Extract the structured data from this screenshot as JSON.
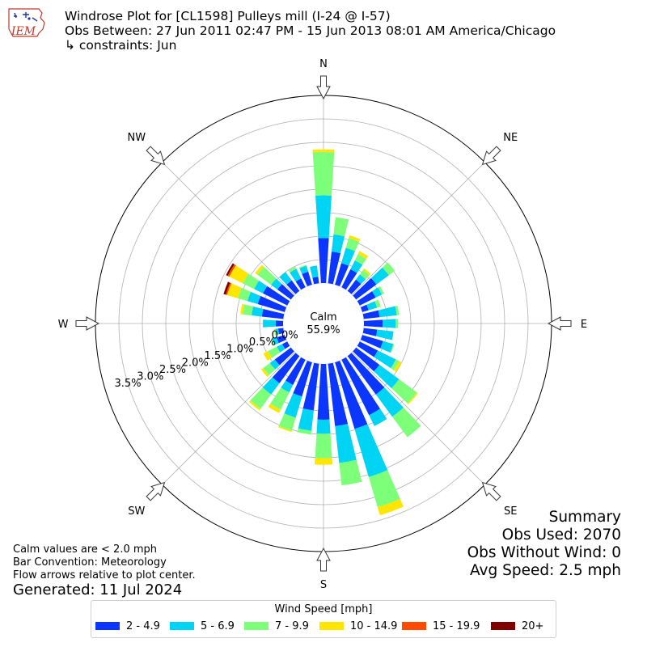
{
  "header": {
    "logo_text": "IEM",
    "title": "Windrose Plot for [CL1598] Pulleys mill  (I-24 @ I-57)",
    "period": "Obs Between: 27 Jun 2011 02:47 PM - 15 Jun 2013 08:01 AM America/Chicago",
    "constraints": " ↳ constraints: Jun"
  },
  "notes": {
    "calm_def": "Calm values are < 2.0 mph",
    "convention": "Bar Convention: Meteorology",
    "arrows": "Flow arrows relative to plot center.",
    "generated": "Generated: 11 Jul 2024"
  },
  "summary": {
    "title": "Summary",
    "obs_used": "Obs Used: 2070",
    "obs_without_wind": "Obs Without Wind: 0",
    "avg_speed": "Avg Speed: 2.5 mph"
  },
  "legend": {
    "title": "Wind Speed [mph]",
    "items": [
      {
        "label": "2 - 4.9",
        "color": "#0a36ff"
      },
      {
        "label": "5 - 6.9",
        "color": "#00d4f4"
      },
      {
        "label": "7 - 9.9",
        "color": "#7dff7a"
      },
      {
        "label": "10 - 14.9",
        "color": "#ffe600"
      },
      {
        "label": "15 - 19.9",
        "color": "#ff4a00"
      },
      {
        "label": "20+",
        "color": "#800000"
      }
    ]
  },
  "chart_data": {
    "type": "windrose",
    "calm_label": "Calm",
    "calm_value": "55.9%",
    "direction_labels": [
      "N",
      "NE",
      "E",
      "SE",
      "S",
      "SW",
      "W",
      "NW"
    ],
    "radial_ticks": [
      {
        "value": 0.0,
        "label": "0.0%"
      },
      {
        "value": 0.5,
        "label": "0.5%"
      },
      {
        "value": 1.0,
        "label": "1.0%"
      },
      {
        "value": 1.5,
        "label": "1.5%"
      },
      {
        "value": 2.0,
        "label": "2.0%"
      },
      {
        "value": 2.5,
        "label": "2.5%"
      },
      {
        "value": 3.0,
        "label": "3.0%"
      },
      {
        "value": 3.5,
        "label": "3.5%"
      }
    ],
    "radial_max": 4.0,
    "bar_convention": "meteorology",
    "speed_bins": [
      "2 - 4.9",
      "5 - 6.9",
      "7 - 9.9",
      "10 - 14.9",
      "15 - 19.9",
      "20+"
    ],
    "direction_degrees": [
      0,
      10,
      20,
      30,
      40,
      50,
      60,
      70,
      80,
      90,
      100,
      110,
      120,
      130,
      140,
      150,
      160,
      170,
      180,
      190,
      200,
      210,
      220,
      230,
      240,
      250,
      260,
      270,
      280,
      290,
      300,
      310,
      320,
      330,
      340,
      350
    ],
    "cumulative_percent": [
      [
        0.96,
        1.87,
        2.79,
        2.85,
        0,
        0
      ],
      [
        0.68,
        1.05,
        1.42,
        1.42,
        0,
        0
      ],
      [
        0.48,
        0.82,
        1.04,
        1.1,
        0,
        0
      ],
      [
        0.43,
        0.64,
        0.79,
        0.86,
        0,
        0
      ],
      [
        0.3,
        0.44,
        0.56,
        0.6,
        0,
        0
      ],
      [
        0.54,
        0.87,
        1.03,
        1.03,
        0,
        0
      ],
      [
        0.38,
        0.53,
        0.58,
        0.58,
        0,
        0
      ],
      [
        0.14,
        0.33,
        0.41,
        0.41,
        0,
        0
      ],
      [
        0.34,
        0.71,
        0.76,
        0.76,
        0,
        0
      ],
      [
        0.4,
        0.68,
        0.73,
        0.73,
        0,
        0
      ],
      [
        0.29,
        0.64,
        0.64,
        0.64,
        0,
        0
      ],
      [
        0.46,
        0.69,
        0.71,
        0.71,
        0,
        0
      ],
      [
        0.43,
        0.86,
        0.94,
        1.0,
        0,
        0
      ],
      [
        0.62,
        1.14,
        1.61,
        1.64,
        0,
        0
      ],
      [
        1.02,
        1.61,
        2.15,
        2.15,
        0,
        0
      ],
      [
        1.32,
        1.58,
        1.58,
        1.58,
        0,
        0
      ],
      [
        1.48,
        2.55,
        3.22,
        3.4,
        0,
        0
      ],
      [
        1.34,
        2.13,
        2.61,
        2.61,
        0,
        0
      ],
      [
        1.19,
        1.49,
        2.01,
        2.15,
        0,
        0
      ],
      [
        1.0,
        1.44,
        1.52,
        1.52,
        0,
        0
      ],
      [
        0.76,
        1.23,
        1.52,
        1.55,
        0,
        0
      ],
      [
        0.6,
        0.78,
        1.19,
        1.27,
        0,
        0
      ],
      [
        0.72,
        1.02,
        1.4,
        1.44,
        0,
        0
      ],
      [
        0.43,
        0.56,
        0.74,
        0.79,
        0,
        0
      ],
      [
        0.12,
        0.25,
        0.46,
        0.57,
        0,
        0
      ],
      [
        0.18,
        0.28,
        0.3,
        0.3,
        0,
        0
      ],
      [
        0.11,
        0.17,
        0.2,
        0.2,
        0,
        0
      ],
      [
        0.16,
        0.43,
        0.43,
        0.43,
        0,
        0
      ],
      [
        0.46,
        0.68,
        0.87,
        0.92,
        0,
        0
      ],
      [
        0.6,
        0.83,
        1.04,
        1.28,
        1.31,
        1.36
      ],
      [
        0.58,
        0.79,
        1.06,
        1.38,
        1.42,
        1.46
      ],
      [
        0.36,
        0.53,
        0.89,
        0.95,
        0,
        0
      ],
      [
        0.28,
        0.5,
        0.5,
        0.5,
        0,
        0
      ],
      [
        0.21,
        0.44,
        0.49,
        0.49,
        0,
        0
      ],
      [
        0.29,
        0.42,
        0.44,
        0.44,
        0,
        0
      ],
      [
        0.14,
        0.38,
        0.38,
        0.38,
        0,
        0
      ]
    ]
  }
}
